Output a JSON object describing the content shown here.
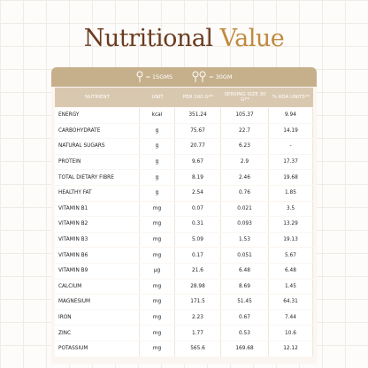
{
  "header": {
    "title_part1": "Nutritional",
    "title_part2": "Value"
  },
  "serving": {
    "scoop1": "= 15GMS",
    "scoop2": "= 30GM"
  },
  "table": {
    "columns": [
      "NUTRIENT",
      "UNIT",
      "PER 100 G**",
      "SERVING SIZE 30 G**",
      "% RDA UNITS**"
    ],
    "rows": [
      [
        "ENERGY",
        "kcal",
        "351.24",
        "105.37",
        "9.94"
      ],
      [
        "CARBOHYDRATE",
        "g",
        "75.67",
        "22.7",
        "14.19"
      ],
      [
        "NATURAL SUGARS",
        "g",
        "20.77",
        "6.23",
        "-"
      ],
      [
        "PROTEIN",
        "g",
        "9.67",
        "2.9",
        "17.37"
      ],
      [
        "TOTAL DIETARY FIBRE",
        "g",
        "8.19",
        "2.46",
        "19.68"
      ],
      [
        "HEALTHY FAT",
        "g",
        "2.54",
        "0.76",
        "1.85"
      ],
      [
        "VITAMIN B1",
        "mg",
        "0.07",
        "0.021",
        "3.5"
      ],
      [
        "VITAMIN B2",
        "mg",
        "0.31",
        "0.093",
        "13.29"
      ],
      [
        "VITAMIN B3",
        "mg",
        "5.09",
        "1.53",
        "19.13"
      ],
      [
        "VITAMIN B6",
        "mg",
        "0.17",
        "0.051",
        "5.67"
      ],
      [
        "VITAMIN B9",
        "µg",
        "21.6",
        "6.48",
        "6.48"
      ],
      [
        "CALCIUM",
        "mg",
        "28.98",
        "8.69",
        "1.45"
      ],
      [
        "MAGNESIUM",
        "mg",
        "171.5",
        "51.45",
        "64.31"
      ],
      [
        "IRON",
        "mg",
        "2.23",
        "0.67",
        "7.44"
      ],
      [
        "ZINC",
        "mg",
        "1.77",
        "0.53",
        "10.6"
      ],
      [
        "POTASSIUM",
        "mg",
        "565.6",
        "169.68",
        "12.12"
      ]
    ]
  }
}
